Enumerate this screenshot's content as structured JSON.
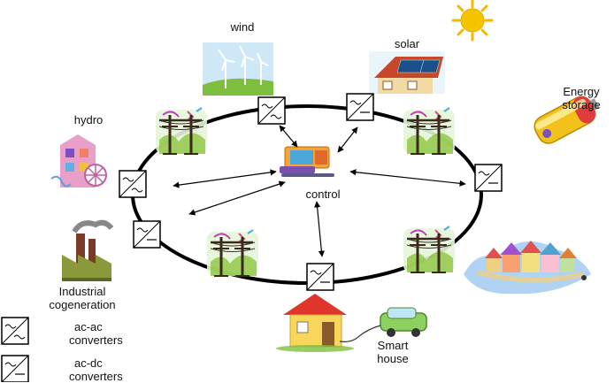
{
  "labels": {
    "wind": "wind",
    "solar": "solar",
    "hydro": "hydro",
    "energy_storage_1": "Energy",
    "energy_storage_2": "storage",
    "control": "control",
    "industrial_1": "Industrial",
    "industrial_2": "cogeneration",
    "smart_house_1": "Smart",
    "smart_house_2": "house"
  },
  "legend": {
    "acac_1": "ac-ac",
    "acac_2": "converters",
    "acdc_1": "ac-dc",
    "acdc_2": "converters"
  },
  "icons": {
    "sun": "sun-icon",
    "wind": "wind-turbine-icon",
    "solar": "solar-house-icon",
    "hydro": "hydro-plant-icon",
    "battery": "battery-icon",
    "factory": "factory-icon",
    "control": "computer-icon",
    "town": "town-icon",
    "house": "house-icon",
    "car": "electric-car-icon",
    "pole": "power-pole-icon"
  },
  "colors": {
    "ring": "#000000",
    "sun": "#f5c400",
    "roof_red": "#e0352b",
    "battery": "#f2c21b",
    "factory": "#8a9a3a"
  }
}
